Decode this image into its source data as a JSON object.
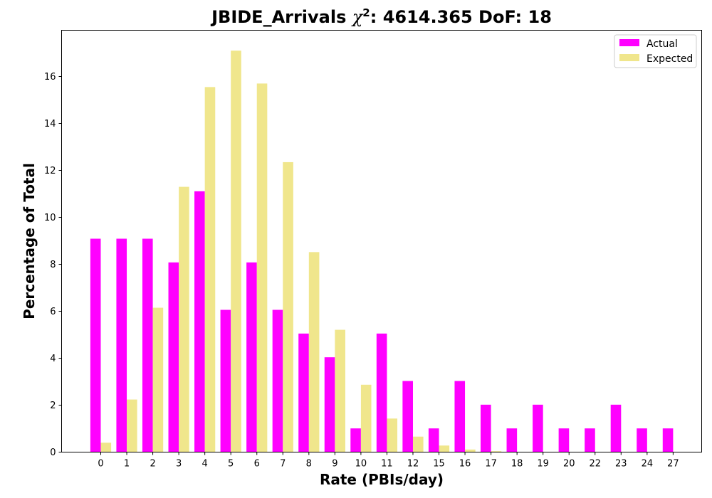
{
  "chart_data": {
    "type": "bar",
    "title_main": "JBIDE_Arrivals ",
    "title_chi": "χ",
    "title_sup": "2",
    "title_rest": ": 4614.365 DoF: 18",
    "xlabel": "Rate (PBIs/day)",
    "ylabel": "Percentage of Total",
    "categories": [
      "0",
      "1",
      "2",
      "3",
      "4",
      "5",
      "6",
      "7",
      "8",
      "9",
      "10",
      "11",
      "12",
      "15",
      "16",
      "17",
      "18",
      "19",
      "20",
      "22",
      "23",
      "24",
      "27"
    ],
    "series": [
      {
        "name": "Actual",
        "color": "#ff00ff",
        "values": [
          9.09,
          9.09,
          9.09,
          8.08,
          11.11,
          6.06,
          8.08,
          6.06,
          5.05,
          4.04,
          1.01,
          5.05,
          3.03,
          1.01,
          3.03,
          2.02,
          1.01,
          2.02,
          1.01,
          1.01,
          2.02,
          1.01,
          1.01
        ]
      },
      {
        "name": "Expected",
        "color": "#f0e68c",
        "values": [
          0.4,
          2.24,
          6.15,
          11.3,
          15.55,
          17.1,
          15.7,
          12.35,
          8.52,
          5.21,
          2.87,
          1.43,
          0.66,
          0.28,
          0.11,
          0.04,
          0.01,
          0,
          0,
          0,
          0,
          0,
          0
        ]
      }
    ],
    "ylim": [
      0,
      18
    ],
    "yticks": [
      0,
      2,
      4,
      6,
      8,
      10,
      12,
      14,
      16
    ],
    "grid": false,
    "legend": "top-right"
  }
}
